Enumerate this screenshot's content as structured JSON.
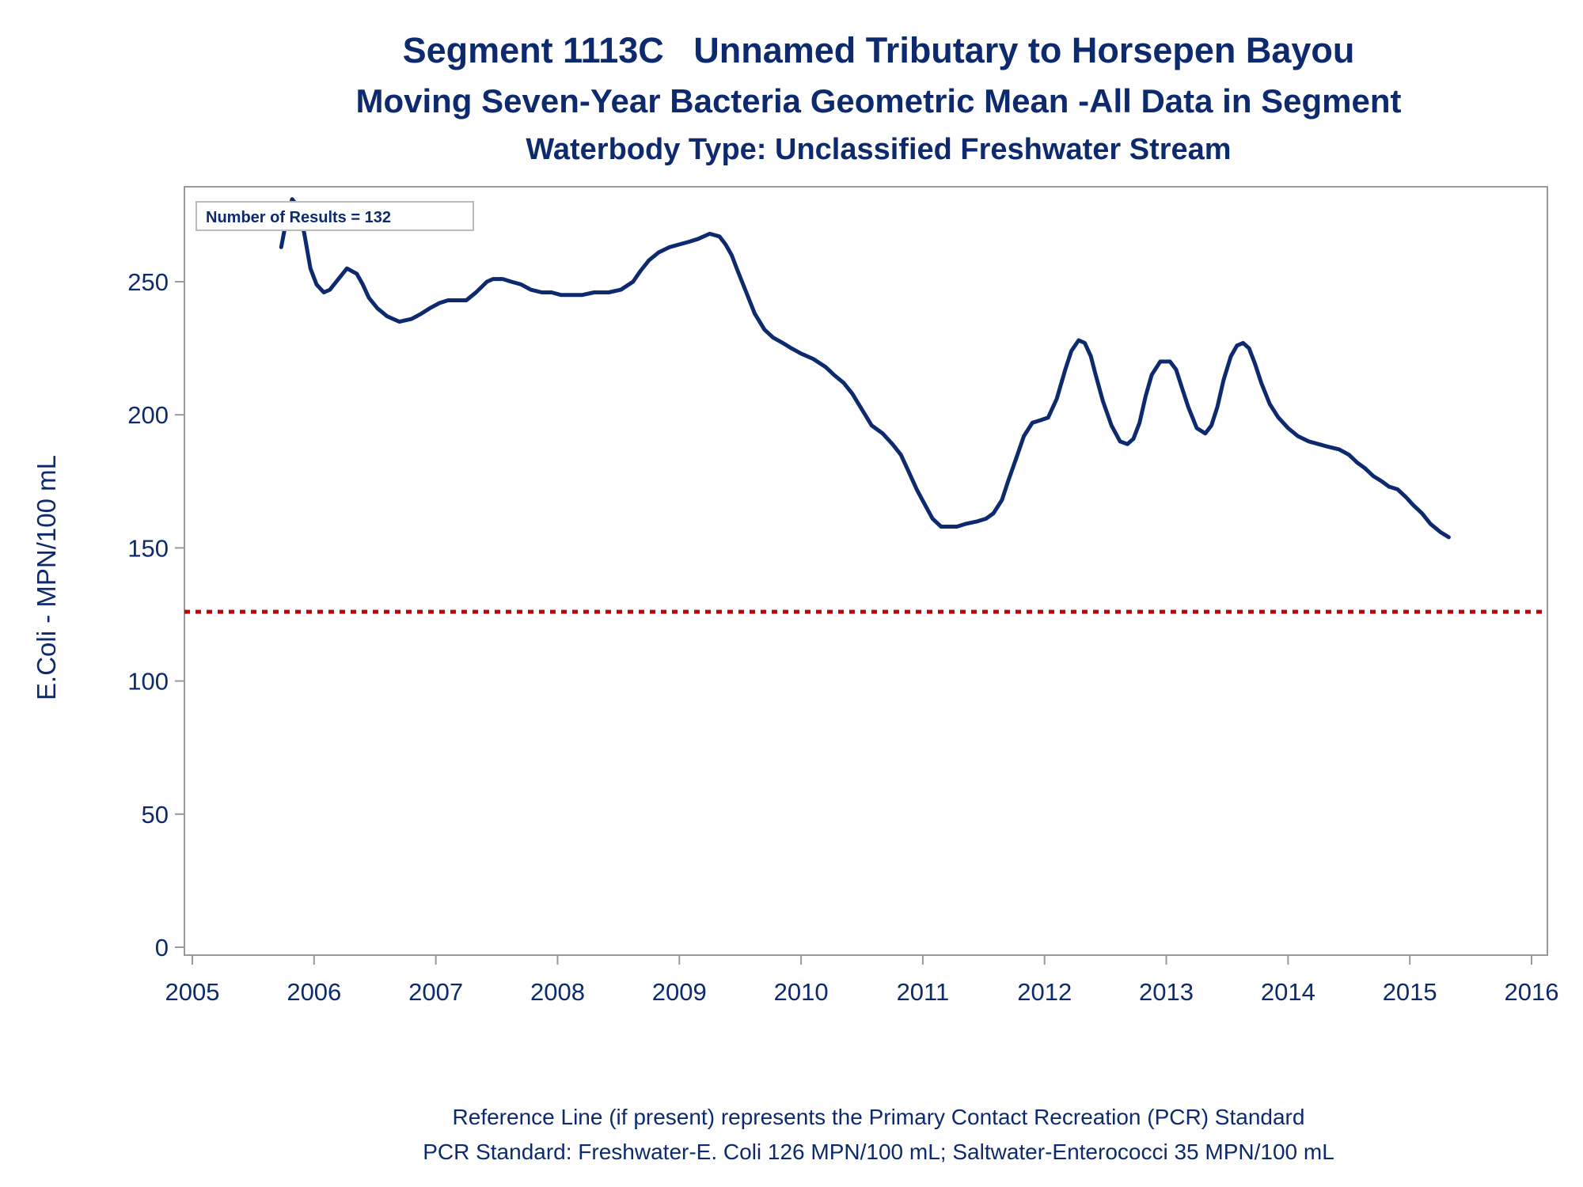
{
  "titles": {
    "line1": "Segment 1113C   Unnamed Tributary to Horsepen Bayou",
    "line2": "Moving Seven-Year Bacteria Geometric Mean -All Data in Segment",
    "line3": "Waterbody Type: Unclassified Freshwater Stream"
  },
  "footnotes": {
    "line1": "Reference Line (if present) represents the Primary Contact Recreation (PCR) Standard",
    "line2": "PCR Standard: Freshwater-E. Coli 126 MPN/100 mL; Saltwater-Enterococci 35 MPN/100 mL"
  },
  "colors": {
    "series": "#0e2a6f",
    "reference": "#cc0000",
    "frame": "#999999",
    "text": "#0e2a6f"
  },
  "chart_data": {
    "type": "line",
    "ylabel": "E.Coli - MPN/100 mL",
    "xlabel": "",
    "xlim": [
      2005,
      2016
    ],
    "ylim": [
      0,
      285
    ],
    "xticks": [
      2005,
      2006,
      2007,
      2008,
      2009,
      2010,
      2011,
      2012,
      2013,
      2014,
      2015,
      2016
    ],
    "yticks": [
      0,
      50,
      100,
      150,
      200,
      250
    ],
    "grid": false,
    "annotation": "Number of Results = 132",
    "reference_line": {
      "y": 126,
      "style": "dotted"
    },
    "series": [
      {
        "x": [
          2005.73,
          2005.78,
          2005.82,
          2005.87,
          2005.92,
          2005.97,
          2006.02,
          2006.08,
          2006.13,
          2006.2,
          2006.27,
          2006.35,
          2006.4,
          2006.45,
          2006.52,
          2006.6,
          2006.7,
          2006.8,
          2006.88,
          2006.95,
          2007.03,
          2007.1,
          2007.17,
          2007.25,
          2007.33,
          2007.42,
          2007.47,
          2007.55,
          2007.62,
          2007.7,
          2007.78,
          2007.87,
          2007.95,
          2008.03,
          2008.1,
          2008.2,
          2008.3,
          2008.42,
          2008.52,
          2008.62,
          2008.68,
          2008.75,
          2008.83,
          2008.92,
          2009.0,
          2009.08,
          2009.15,
          2009.25,
          2009.33,
          2009.38,
          2009.43,
          2009.48,
          2009.55,
          2009.62,
          2009.7,
          2009.77,
          2009.85,
          2009.92,
          2010.0,
          2010.1,
          2010.2,
          2010.27,
          2010.35,
          2010.42,
          2010.5,
          2010.58,
          2010.67,
          2010.75,
          2010.82,
          2010.88,
          2010.95,
          2011.02,
          2011.08,
          2011.15,
          2011.22,
          2011.28,
          2011.35,
          2011.45,
          2011.52,
          2011.58,
          2011.65,
          2011.7,
          2011.77,
          2011.83,
          2011.9,
          2011.97,
          2012.03,
          2012.1,
          2012.17,
          2012.22,
          2012.28,
          2012.33,
          2012.38,
          2012.42,
          2012.48,
          2012.55,
          2012.62,
          2012.68,
          2012.73,
          2012.78,
          2012.83,
          2012.88,
          2012.95,
          2013.03,
          2013.08,
          2013.13,
          2013.18,
          2013.25,
          2013.32,
          2013.37,
          2013.42,
          2013.47,
          2013.53,
          2013.58,
          2013.63,
          2013.68,
          2013.73,
          2013.78,
          2013.85,
          2013.92,
          2014.0,
          2014.08,
          2014.17,
          2014.25,
          2014.33,
          2014.42,
          2014.5,
          2014.57,
          2014.63,
          2014.7,
          2014.77,
          2014.83,
          2014.9,
          2014.97,
          2015.03,
          2015.1,
          2015.17,
          2015.25,
          2015.32
        ],
        "y": [
          263,
          275,
          281,
          278,
          268,
          255,
          249,
          246,
          247,
          251,
          255,
          253,
          249,
          244,
          240,
          237,
          235,
          236,
          238,
          240,
          242,
          243,
          243,
          243,
          246,
          250,
          251,
          251,
          250,
          249,
          247,
          246,
          246,
          245,
          245,
          245,
          246,
          246,
          247,
          250,
          254,
          258,
          261,
          263,
          264,
          265,
          266,
          268,
          267,
          264,
          260,
          254,
          246,
          238,
          232,
          229,
          227,
          225,
          223,
          221,
          218,
          215,
          212,
          208,
          202,
          196,
          193,
          189,
          185,
          179,
          172,
          166,
          161,
          158,
          158,
          158,
          159,
          160,
          161,
          163,
          168,
          175,
          184,
          192,
          197,
          198,
          199,
          206,
          217,
          224,
          228,
          227,
          222,
          215,
          205,
          196,
          190,
          189,
          191,
          197,
          207,
          215,
          220,
          220,
          217,
          210,
          203,
          195,
          193,
          196,
          203,
          213,
          222,
          226,
          227,
          225,
          219,
          212,
          204,
          199,
          195,
          192,
          190,
          189,
          188,
          187,
          185,
          182,
          180,
          177,
          175,
          173,
          172,
          169,
          166,
          163,
          159,
          156,
          154
        ]
      }
    ]
  }
}
